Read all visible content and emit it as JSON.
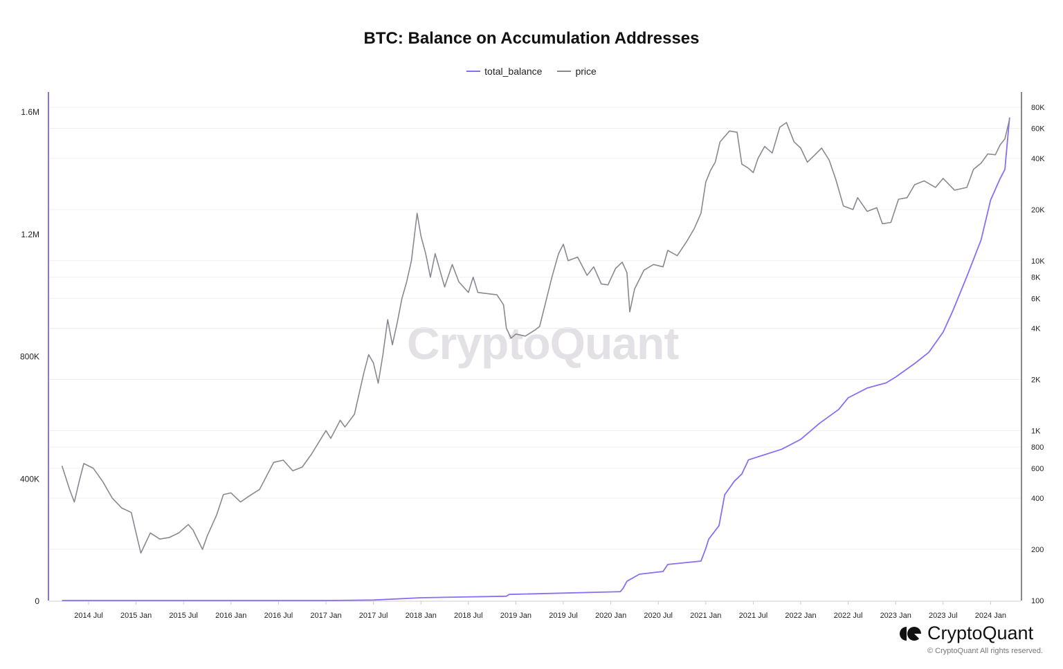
{
  "chart_data": {
    "type": "line",
    "title": "BTC: Balance on Accumulation Addresses",
    "legend": [
      "total_balance",
      "price"
    ],
    "legend_placement": "top-center",
    "colors": {
      "total_balance": "#8b6cf6",
      "price": "#8a8791"
    },
    "x_ticks": [
      "2014 Jul",
      "2015 Jan",
      "2015 Jul",
      "2016 Jan",
      "2016 Jul",
      "2017 Jan",
      "2017 Jul",
      "2018 Jan",
      "2018 Jul",
      "2019 Jan",
      "2019 Jul",
      "2020 Jan",
      "2020 Jul",
      "2021 Jan",
      "2021 Jul",
      "2022 Jan",
      "2022 Jul",
      "2023 Jan",
      "2023 Jul",
      "2024 Jan"
    ],
    "x_tick_values": [
      2014.5,
      2015.0,
      2015.5,
      2016.0,
      2016.5,
      2017.0,
      2017.5,
      2018.0,
      2018.5,
      2019.0,
      2019.5,
      2020.0,
      2020.5,
      2021.0,
      2021.5,
      2022.0,
      2022.5,
      2023.0,
      2023.5,
      2024.0
    ],
    "xlim": [
      2014.22,
      2024.2
    ],
    "left_axis": {
      "scale": "linear",
      "ylim": [
        0,
        1600000
      ],
      "ticks": [
        0,
        400000,
        800000,
        1200000,
        1600000
      ],
      "tick_labels": [
        "0",
        "400K",
        "800K",
        "1.2M",
        "1.6M"
      ]
    },
    "right_axis": {
      "scale": "log",
      "ylim": [
        100,
        80000
      ],
      "ticks": [
        100,
        200,
        400,
        600,
        800,
        1000,
        2000,
        4000,
        6000,
        8000,
        10000,
        20000,
        40000,
        60000,
        80000
      ],
      "tick_labels": [
        "100",
        "200",
        "400",
        "600",
        "800",
        "1K",
        "2K",
        "4K",
        "6K",
        "8K",
        "10K",
        "20K",
        "40K",
        "60K",
        "80K"
      ]
    },
    "series": [
      {
        "name": "total_balance",
        "axis": "left",
        "points": [
          [
            2014.22,
            0
          ],
          [
            2017.0,
            0
          ],
          [
            2017.5,
            1500
          ],
          [
            2018.0,
            9000
          ],
          [
            2018.9,
            14000
          ],
          [
            2018.93,
            20000
          ],
          [
            2020.1,
            29000
          ],
          [
            2020.13,
            40000
          ],
          [
            2020.17,
            63000
          ],
          [
            2020.3,
            86000
          ],
          [
            2020.55,
            95000
          ],
          [
            2020.6,
            118000
          ],
          [
            2020.95,
            129000
          ],
          [
            2021.0,
            170000
          ],
          [
            2021.03,
            200000
          ],
          [
            2021.14,
            245000
          ],
          [
            2021.2,
            346000
          ],
          [
            2021.3,
            390000
          ],
          [
            2021.38,
            414000
          ],
          [
            2021.45,
            460000
          ],
          [
            2021.6,
            475000
          ],
          [
            2021.8,
            495000
          ],
          [
            2022.0,
            527000
          ],
          [
            2022.2,
            580000
          ],
          [
            2022.4,
            625000
          ],
          [
            2022.5,
            663000
          ],
          [
            2022.7,
            695000
          ],
          [
            2022.9,
            712000
          ],
          [
            2023.0,
            731000
          ],
          [
            2023.2,
            775000
          ],
          [
            2023.35,
            812000
          ],
          [
            2023.5,
            878000
          ],
          [
            2023.6,
            946000
          ],
          [
            2023.75,
            1060000
          ],
          [
            2023.9,
            1180000
          ],
          [
            2024.0,
            1310000
          ],
          [
            2024.1,
            1380000
          ],
          [
            2024.15,
            1410000
          ],
          [
            2024.2,
            1580000
          ]
        ]
      },
      {
        "name": "price",
        "axis": "right",
        "points": [
          [
            2014.22,
            620
          ],
          [
            2014.3,
            450
          ],
          [
            2014.35,
            380
          ],
          [
            2014.4,
            500
          ],
          [
            2014.45,
            640
          ],
          [
            2014.55,
            600
          ],
          [
            2014.65,
            500
          ],
          [
            2014.75,
            400
          ],
          [
            2014.85,
            350
          ],
          [
            2014.95,
            330
          ],
          [
            2015.0,
            250
          ],
          [
            2015.05,
            190
          ],
          [
            2015.15,
            250
          ],
          [
            2015.25,
            230
          ],
          [
            2015.35,
            235
          ],
          [
            2015.45,
            250
          ],
          [
            2015.55,
            280
          ],
          [
            2015.6,
            260
          ],
          [
            2015.7,
            200
          ],
          [
            2015.75,
            240
          ],
          [
            2015.85,
            320
          ],
          [
            2015.92,
            420
          ],
          [
            2016.0,
            430
          ],
          [
            2016.1,
            380
          ],
          [
            2016.2,
            415
          ],
          [
            2016.3,
            450
          ],
          [
            2016.45,
            650
          ],
          [
            2016.55,
            670
          ],
          [
            2016.65,
            580
          ],
          [
            2016.75,
            610
          ],
          [
            2016.85,
            730
          ],
          [
            2016.95,
            900
          ],
          [
            2017.0,
            1000
          ],
          [
            2017.05,
            900
          ],
          [
            2017.15,
            1150
          ],
          [
            2017.2,
            1050
          ],
          [
            2017.3,
            1250
          ],
          [
            2017.4,
            2200
          ],
          [
            2017.45,
            2800
          ],
          [
            2017.5,
            2500
          ],
          [
            2017.55,
            1900
          ],
          [
            2017.6,
            2800
          ],
          [
            2017.65,
            4500
          ],
          [
            2017.7,
            3200
          ],
          [
            2017.75,
            4300
          ],
          [
            2017.8,
            6000
          ],
          [
            2017.85,
            7500
          ],
          [
            2017.9,
            10000
          ],
          [
            2017.96,
            19000
          ],
          [
            2018.0,
            14000
          ],
          [
            2018.05,
            11000
          ],
          [
            2018.1,
            8000
          ],
          [
            2018.15,
            11000
          ],
          [
            2018.25,
            7000
          ],
          [
            2018.33,
            9500
          ],
          [
            2018.4,
            7500
          ],
          [
            2018.5,
            6500
          ],
          [
            2018.55,
            8000
          ],
          [
            2018.6,
            6500
          ],
          [
            2018.7,
            6400
          ],
          [
            2018.8,
            6300
          ],
          [
            2018.87,
            5500
          ],
          [
            2018.9,
            4000
          ],
          [
            2018.95,
            3500
          ],
          [
            2019.0,
            3700
          ],
          [
            2019.1,
            3600
          ],
          [
            2019.2,
            3900
          ],
          [
            2019.25,
            4100
          ],
          [
            2019.3,
            5300
          ],
          [
            2019.38,
            8000
          ],
          [
            2019.45,
            11000
          ],
          [
            2019.5,
            12500
          ],
          [
            2019.55,
            10000
          ],
          [
            2019.65,
            10500
          ],
          [
            2019.75,
            8200
          ],
          [
            2019.82,
            9200
          ],
          [
            2019.9,
            7300
          ],
          [
            2019.97,
            7200
          ],
          [
            2020.05,
            9000
          ],
          [
            2020.12,
            9800
          ],
          [
            2020.17,
            8500
          ],
          [
            2020.2,
            5000
          ],
          [
            2020.25,
            6800
          ],
          [
            2020.35,
            8800
          ],
          [
            2020.45,
            9500
          ],
          [
            2020.55,
            9200
          ],
          [
            2020.6,
            11500
          ],
          [
            2020.7,
            10700
          ],
          [
            2020.8,
            13000
          ],
          [
            2020.88,
            15500
          ],
          [
            2020.95,
            19000
          ],
          [
            2021.0,
            29000
          ],
          [
            2021.05,
            34000
          ],
          [
            2021.1,
            38000
          ],
          [
            2021.15,
            50000
          ],
          [
            2021.25,
            58000
          ],
          [
            2021.33,
            57000
          ],
          [
            2021.38,
            37000
          ],
          [
            2021.45,
            35000
          ],
          [
            2021.5,
            33000
          ],
          [
            2021.55,
            40000
          ],
          [
            2021.62,
            47000
          ],
          [
            2021.7,
            43000
          ],
          [
            2021.78,
            61000
          ],
          [
            2021.85,
            65000
          ],
          [
            2021.93,
            50000
          ],
          [
            2022.0,
            46000
          ],
          [
            2022.07,
            38000
          ],
          [
            2022.15,
            42000
          ],
          [
            2022.22,
            46000
          ],
          [
            2022.3,
            39000
          ],
          [
            2022.37,
            30000
          ],
          [
            2022.45,
            21000
          ],
          [
            2022.55,
            20000
          ],
          [
            2022.6,
            23500
          ],
          [
            2022.7,
            19500
          ],
          [
            2022.8,
            20500
          ],
          [
            2022.86,
            16500
          ],
          [
            2022.95,
            16800
          ],
          [
            2023.03,
            23000
          ],
          [
            2023.12,
            23500
          ],
          [
            2023.2,
            28000
          ],
          [
            2023.3,
            29500
          ],
          [
            2023.42,
            27000
          ],
          [
            2023.5,
            30500
          ],
          [
            2023.62,
            26000
          ],
          [
            2023.75,
            27000
          ],
          [
            2023.82,
            34500
          ],
          [
            2023.9,
            37500
          ],
          [
            2023.97,
            42500
          ],
          [
            2024.05,
            42000
          ],
          [
            2024.1,
            48000
          ],
          [
            2024.15,
            52000
          ],
          [
            2024.2,
            68000
          ]
        ]
      }
    ]
  },
  "watermark": "CryptoQuant",
  "brand": {
    "name": "CryptoQuant",
    "copyright": "© CryptoQuant All rights reserved."
  }
}
